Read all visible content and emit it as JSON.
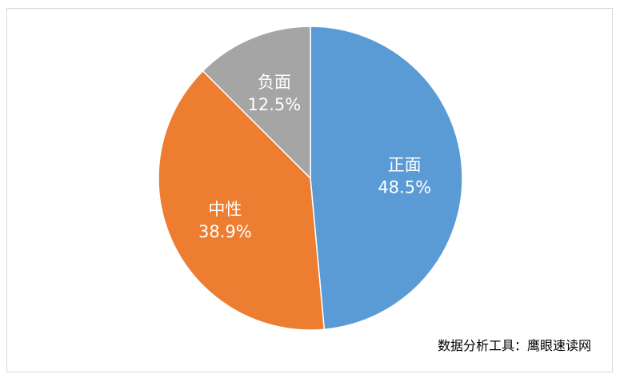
{
  "chart_data": {
    "type": "pie",
    "slices": [
      {
        "label": "正面",
        "value": 48.5,
        "value_label": "48.5%",
        "color": "#5b9bd5"
      },
      {
        "label": "中性",
        "value": 38.9,
        "value_label": "38.9%",
        "color": "#ed7d31"
      },
      {
        "label": "负面",
        "value": 12.5,
        "value_label": "12.5%",
        "color": "#a5a5a5"
      }
    ],
    "start_angle": "12 o'clock",
    "direction": "clockwise",
    "legend": "none"
  },
  "footer": {
    "source_note": "数据分析工具：鹰眼速读网"
  }
}
